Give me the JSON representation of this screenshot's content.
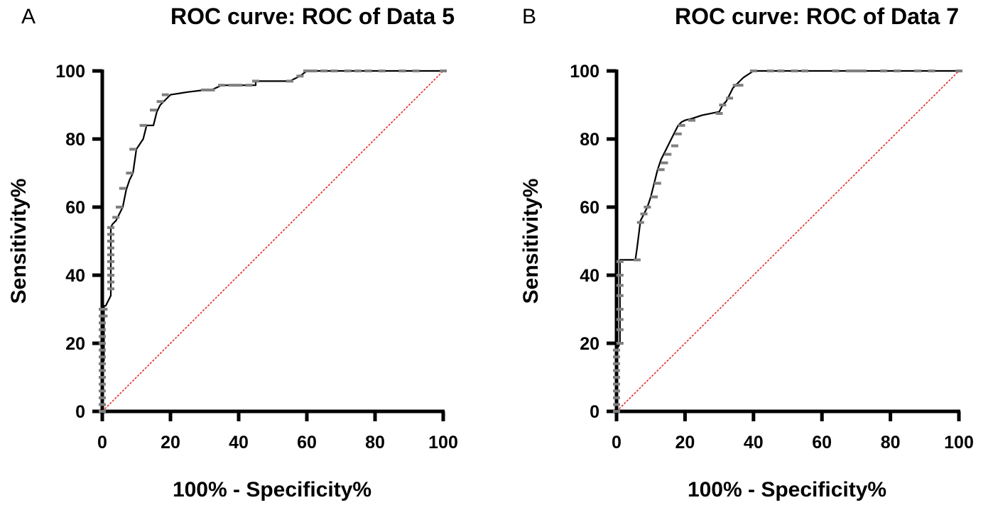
{
  "chart_data": [
    {
      "panel_label": "A",
      "type": "line",
      "title": "ROC curve: ROC of Data 5",
      "xlabel": "100% - Specificity%",
      "ylabel": "Sensitivity%",
      "xlim": [
        0,
        100
      ],
      "ylim": [
        0,
        100
      ],
      "xticks": [
        0,
        20,
        40,
        60,
        80,
        100
      ],
      "yticks": [
        0,
        20,
        40,
        60,
        80,
        100
      ],
      "grid": false,
      "colors": {
        "curve": "#000000",
        "reference": "#e0201c",
        "markers": "#808080"
      },
      "series": [
        {
          "name": "ROC curve",
          "x": [
            0,
            0,
            0.5,
            0.5,
            1,
            1.5,
            2.5,
            2.5,
            3,
            4,
            5,
            6,
            7,
            8,
            9,
            10,
            12,
            13,
            14,
            15,
            16,
            17,
            18,
            19,
            20,
            25,
            30,
            32,
            35,
            40,
            45,
            45,
            50,
            55,
            58,
            60,
            60,
            70,
            80,
            90,
            100
          ],
          "y": [
            0,
            14,
            15,
            31,
            31,
            32,
            34,
            54,
            55,
            56,
            58,
            60,
            65,
            68,
            70,
            77,
            80,
            84,
            84,
            84,
            88,
            90,
            91,
            92,
            93,
            93.8,
            94.4,
            94.4,
            95.8,
            95.8,
            95.8,
            97,
            97,
            97,
            98.5,
            100,
            100,
            100,
            100,
            100,
            100
          ]
        },
        {
          "name": "Reference line",
          "x": [
            0,
            100
          ],
          "y": [
            0,
            100
          ]
        }
      ],
      "markers": [
        {
          "x": 0,
          "y": [
            0,
            2,
            4,
            6,
            8,
            10,
            12,
            14,
            16,
            18,
            20,
            22,
            24,
            26,
            28,
            30
          ]
        },
        {
          "x": 0.5,
          "y": [
            28,
            30
          ]
        },
        {
          "x": 2.5,
          "y": [
            36,
            38,
            40,
            42,
            44,
            46,
            48,
            50,
            52,
            54
          ]
        },
        {
          "x": 4,
          "y": [
            57
          ]
        },
        {
          "x": 5,
          "y": [
            60
          ]
        },
        {
          "x": 6,
          "y": [
            65.5
          ]
        },
        {
          "x": 8,
          "y": [
            70
          ]
        },
        {
          "x": 9,
          "y": [
            77
          ]
        },
        {
          "x": 12,
          "y": [
            84
          ]
        },
        {
          "x": 15,
          "y": [
            88.5
          ]
        },
        {
          "x": 17,
          "y": [
            91
          ]
        },
        {
          "x": 18.5,
          "y": [
            93
          ]
        },
        {
          "x": 30,
          "y": [
            94.4
          ]
        },
        {
          "x": 32,
          "y": [
            94.4
          ]
        },
        {
          "x": 35,
          "y": [
            95.8
          ]
        },
        {
          "x": 38,
          "y": [
            95.8
          ]
        },
        {
          "x": 40,
          "y": [
            95.8
          ]
        },
        {
          "x": 43,
          "y": [
            95.8
          ]
        },
        {
          "x": 45,
          "y": [
            97
          ]
        },
        {
          "x": 55,
          "y": [
            97
          ]
        },
        {
          "x": 58,
          "y": [
            98.5
          ]
        },
        {
          "x": 60,
          "y": [
            100
          ]
        },
        {
          "x": 62,
          "y": [
            100
          ]
        },
        {
          "x": 65,
          "y": [
            100
          ]
        },
        {
          "x": 68,
          "y": [
            100
          ]
        },
        {
          "x": 72,
          "y": [
            100
          ]
        },
        {
          "x": 75,
          "y": [
            100
          ]
        },
        {
          "x": 78,
          "y": [
            100
          ]
        },
        {
          "x": 82,
          "y": [
            100
          ]
        },
        {
          "x": 88,
          "y": [
            100
          ]
        },
        {
          "x": 92,
          "y": [
            100
          ]
        },
        {
          "x": 100,
          "y": [
            100
          ]
        }
      ]
    },
    {
      "panel_label": "B",
      "type": "line",
      "title": "ROC curve: ROC of Data 7",
      "xlabel": "100% - Specificity%",
      "ylabel": "Sensitivity%",
      "xlim": [
        0,
        100
      ],
      "ylim": [
        0,
        100
      ],
      "xticks": [
        0,
        20,
        40,
        60,
        80,
        100
      ],
      "yticks": [
        0,
        20,
        40,
        60,
        80,
        100
      ],
      "grid": false,
      "colors": {
        "curve": "#000000",
        "reference": "#e0201c",
        "markers": "#808080"
      },
      "series": [
        {
          "name": "ROC curve",
          "x": [
            0,
            0,
            1,
            1,
            5.5,
            6,
            7,
            8,
            9,
            10,
            11,
            12,
            13,
            14,
            15,
            16,
            17,
            18,
            19,
            20,
            22,
            25,
            30,
            31,
            32,
            33,
            34,
            35,
            36,
            37,
            40,
            50,
            60,
            70,
            80,
            90,
            100
          ],
          "y": [
            0,
            18,
            20,
            44.5,
            44.5,
            48,
            56,
            58,
            60,
            63,
            67,
            71,
            74,
            76,
            78,
            80,
            82,
            84,
            85,
            85.5,
            86,
            87,
            88,
            90,
            91,
            93,
            95,
            96,
            97,
            98,
            100,
            100,
            100,
            100,
            100,
            100,
            100
          ]
        },
        {
          "name": "Reference line",
          "x": [
            0,
            100
          ],
          "y": [
            0,
            100
          ]
        }
      ],
      "markers": [
        {
          "x": 0,
          "y": [
            0,
            2,
            4,
            6,
            8,
            10,
            12,
            14,
            16,
            18
          ]
        },
        {
          "x": 1,
          "y": [
            20,
            24,
            27,
            30,
            34,
            37,
            40,
            44
          ]
        },
        {
          "x": 6,
          "y": [
            44.5
          ]
        },
        {
          "x": 7,
          "y": [
            55.5
          ]
        },
        {
          "x": 8,
          "y": [
            58
          ]
        },
        {
          "x": 9,
          "y": [
            60
          ]
        },
        {
          "x": 11,
          "y": [
            63
          ]
        },
        {
          "x": 12,
          "y": [
            67
          ]
        },
        {
          "x": 13,
          "y": [
            71
          ]
        },
        {
          "x": 14,
          "y": [
            73
          ]
        },
        {
          "x": 15,
          "y": [
            75.5
          ]
        },
        {
          "x": 17,
          "y": [
            78
          ]
        },
        {
          "x": 18,
          "y": [
            81.5
          ]
        },
        {
          "x": 19,
          "y": [
            84
          ]
        },
        {
          "x": 22,
          "y": [
            85.5
          ]
        },
        {
          "x": 30,
          "y": [
            87.5
          ]
        },
        {
          "x": 31,
          "y": [
            90
          ]
        },
        {
          "x": 33,
          "y": [
            92
          ]
        },
        {
          "x": 35,
          "y": [
            95.8
          ]
        },
        {
          "x": 36,
          "y": [
            95.8
          ]
        },
        {
          "x": 40,
          "y": [
            100
          ]
        },
        {
          "x": 45,
          "y": [
            100
          ]
        },
        {
          "x": 48,
          "y": [
            100
          ]
        },
        {
          "x": 52,
          "y": [
            100
          ]
        },
        {
          "x": 55,
          "y": [
            100
          ]
        },
        {
          "x": 64,
          "y": [
            100
          ]
        },
        {
          "x": 68,
          "y": [
            100
          ]
        },
        {
          "x": 70,
          "y": [
            100
          ]
        },
        {
          "x": 72,
          "y": [
            100
          ]
        },
        {
          "x": 78,
          "y": [
            100
          ]
        },
        {
          "x": 82,
          "y": [
            100
          ]
        },
        {
          "x": 88,
          "y": [
            100
          ]
        },
        {
          "x": 92,
          "y": [
            100
          ]
        },
        {
          "x": 100,
          "y": [
            100
          ]
        }
      ]
    }
  ]
}
